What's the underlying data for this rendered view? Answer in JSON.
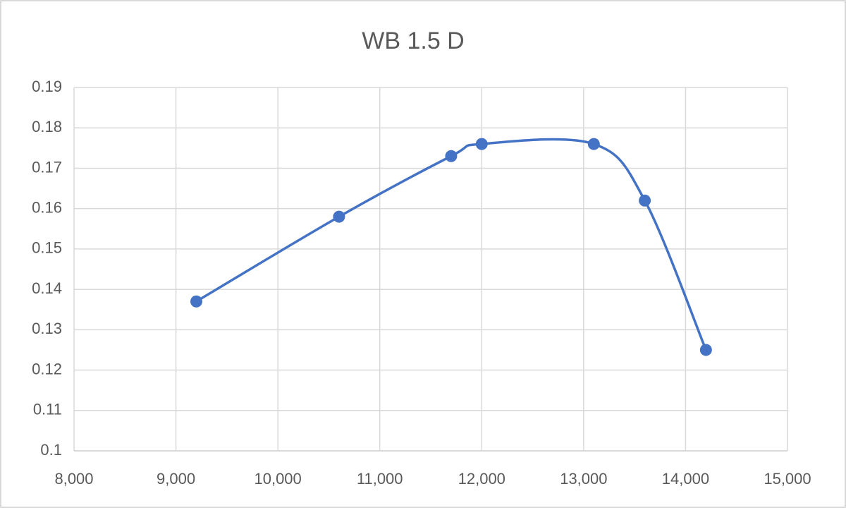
{
  "chart_data": {
    "type": "scatter",
    "title": "WB 1.5 D",
    "x": [
      9200,
      10600,
      11700,
      12000,
      13100,
      13600,
      14200
    ],
    "values": [
      0.137,
      0.158,
      0.173,
      0.176,
      0.176,
      0.162,
      0.125
    ],
    "color": "#4472c4",
    "smooth": true,
    "markers": true,
    "grid": true,
    "xlim": [
      8000,
      15000
    ],
    "xticks": [
      {
        "value": 8000,
        "label": "8,000"
      },
      {
        "value": 9000,
        "label": "9,000"
      },
      {
        "value": 10000,
        "label": "10,000"
      },
      {
        "value": 11000,
        "label": "11,000"
      },
      {
        "value": 12000,
        "label": "12,000"
      },
      {
        "value": 13000,
        "label": "13,000"
      },
      {
        "value": 14000,
        "label": "14,000"
      },
      {
        "value": 15000,
        "label": "15,000"
      }
    ],
    "ylim": [
      0.1,
      0.19
    ],
    "yticks": [
      0.1,
      0.11,
      0.12,
      0.13,
      0.14,
      0.15,
      0.16,
      0.17,
      0.18,
      0.19
    ]
  }
}
